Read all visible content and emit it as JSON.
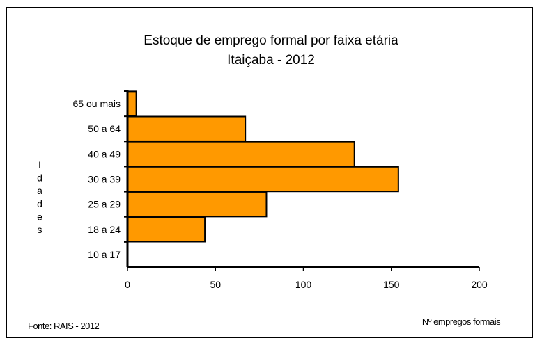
{
  "chart_data": {
    "type": "bar",
    "orientation": "horizontal",
    "title": "Estoque de emprego formal por faixa etária",
    "subtitle": "Itaiçaba - 2012",
    "xlabel": "Nº empregos formais",
    "ylabel": "Idades",
    "source": "Fonte: RAIS - 2012",
    "categories": [
      "10 a 17",
      "18 a 24",
      "25 a 29",
      "30 a 39",
      "40 a 49",
      "50 a 64",
      "65 ou mais"
    ],
    "values": [
      0,
      44,
      79,
      154,
      129,
      67,
      5
    ],
    "xlim": [
      0,
      200
    ],
    "xticks": [
      "0",
      "50",
      "100",
      "150",
      "200"
    ],
    "grid": false,
    "bar_color": "#FF9900",
    "bar_outline": "#000000"
  }
}
